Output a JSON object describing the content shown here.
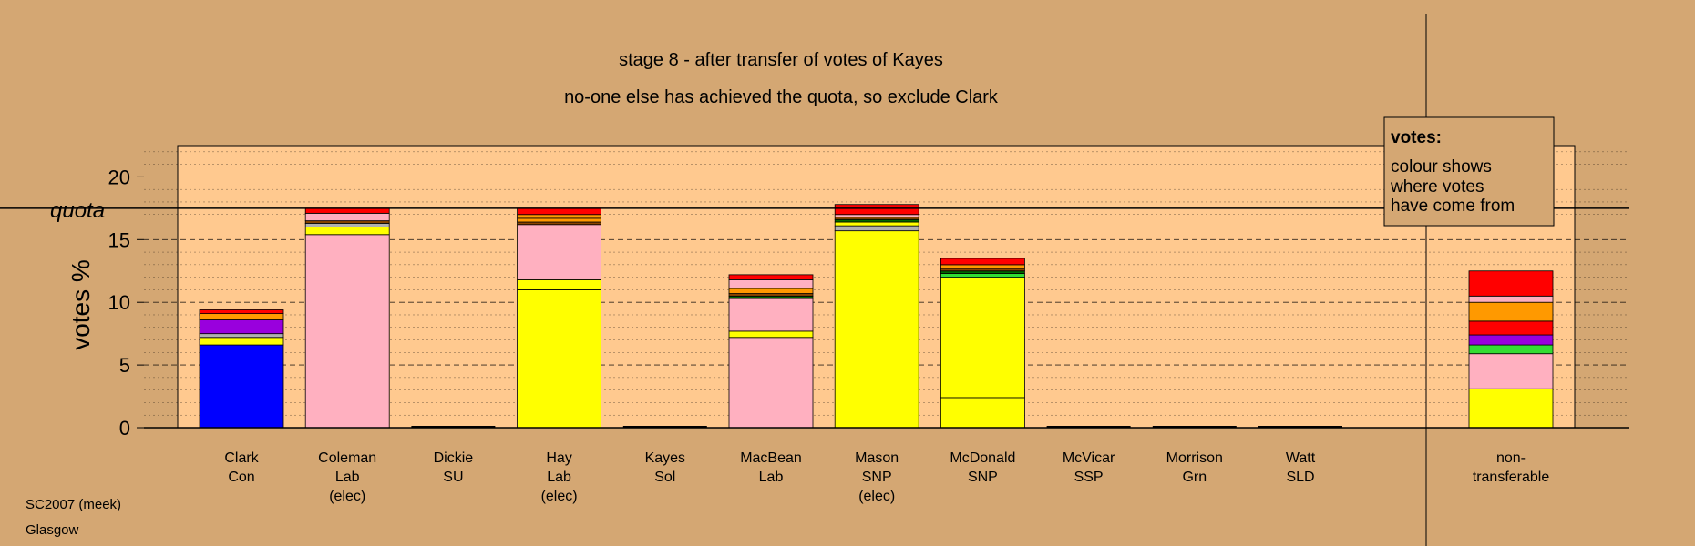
{
  "chart_data": {
    "type": "bar",
    "title": "stage 8 - after transfer of votes of Kayes",
    "subtitle": "no-one else has achieved the quota, so exclude Clark",
    "ylabel": "votes %",
    "ylim": [
      0,
      22.5
    ],
    "yticks": [
      0,
      5,
      10,
      15,
      20
    ],
    "quota": 17.5,
    "quota_label": "quota",
    "legend": {
      "title": "votes:",
      "lines": [
        "colour shows",
        "where votes",
        "have come from"
      ]
    },
    "footer": [
      "SC2007 (meek)",
      "Glasgow"
    ],
    "colors": {
      "background": "#d4a773",
      "plot_area": "#ffc98f",
      "blue": "#0000ff",
      "yellow": "#ffff00",
      "pink": "#ffb0c0",
      "purple": "#9900dd",
      "orange": "#ff9900",
      "red": "#ff0000",
      "green": "#33dd33",
      "darkgreen": "#006600",
      "brown": "#884400",
      "grey": "#b0b0b0"
    },
    "candidates": [
      {
        "name": "Clark",
        "party": "Con",
        "note": "",
        "segments": [
          {
            "value": 6.6,
            "color": "blue"
          },
          {
            "value": 0.6,
            "color": "yellow"
          },
          {
            "value": 0.3,
            "color": "grey"
          },
          {
            "value": 1.1,
            "color": "purple"
          },
          {
            "value": 0.5,
            "color": "orange"
          },
          {
            "value": 0.3,
            "color": "red"
          }
        ]
      },
      {
        "name": "Coleman",
        "party": "Lab",
        "note": "(elec)",
        "segments": [
          {
            "value": 15.4,
            "color": "pink"
          },
          {
            "value": 0.6,
            "color": "yellow"
          },
          {
            "value": 0.3,
            "color": "grey"
          },
          {
            "value": 0.2,
            "color": "brown"
          },
          {
            "value": 0.6,
            "color": "pink"
          },
          {
            "value": 0.4,
            "color": "red"
          }
        ]
      },
      {
        "name": "Dickie",
        "party": "SU",
        "note": "",
        "segments": []
      },
      {
        "name": "Hay",
        "party": "Lab",
        "note": "(elec)",
        "segments": [
          {
            "value": 11.0,
            "color": "yellow"
          },
          {
            "value": 0.8,
            "color": "yellow"
          },
          {
            "value": 4.4,
            "color": "pink"
          },
          {
            "value": 0.2,
            "color": "brown"
          },
          {
            "value": 0.3,
            "color": "orange"
          },
          {
            "value": 0.3,
            "color": "orange"
          },
          {
            "value": 0.5,
            "color": "red"
          }
        ]
      },
      {
        "name": "Kayes",
        "party": "Sol",
        "note": "",
        "segments": []
      },
      {
        "name": "MacBean",
        "party": "Lab",
        "note": "",
        "segments": [
          {
            "value": 7.2,
            "color": "pink"
          },
          {
            "value": 0.5,
            "color": "yellow"
          },
          {
            "value": 2.6,
            "color": "pink"
          },
          {
            "value": 0.2,
            "color": "darkgreen"
          },
          {
            "value": 0.2,
            "color": "brown"
          },
          {
            "value": 0.4,
            "color": "orange"
          },
          {
            "value": 0.7,
            "color": "pink"
          },
          {
            "value": 0.4,
            "color": "red"
          }
        ]
      },
      {
        "name": "Mason",
        "party": "SNP",
        "note": "(elec)",
        "segments": [
          {
            "value": 15.7,
            "color": "yellow"
          },
          {
            "value": 0.4,
            "color": "grey"
          },
          {
            "value": 0.3,
            "color": "yellow"
          },
          {
            "value": 0.2,
            "color": "darkgreen"
          },
          {
            "value": 0.2,
            "color": "brown"
          },
          {
            "value": 0.2,
            "color": "pink"
          },
          {
            "value": 0.8,
            "color": "red"
          }
        ]
      },
      {
        "name": "McDonald",
        "party": "SNP",
        "note": "",
        "segments": [
          {
            "value": 2.4,
            "color": "yellow"
          },
          {
            "value": 9.6,
            "color": "yellow"
          },
          {
            "value": 0.3,
            "color": "green"
          },
          {
            "value": 0.2,
            "color": "darkgreen"
          },
          {
            "value": 0.2,
            "color": "brown"
          },
          {
            "value": 0.3,
            "color": "orange"
          },
          {
            "value": 0.5,
            "color": "red"
          }
        ]
      },
      {
        "name": "McVicar",
        "party": "SSP",
        "note": "",
        "segments": []
      },
      {
        "name": "Morrison",
        "party": "Grn",
        "note": "",
        "segments": []
      },
      {
        "name": "Watt",
        "party": "SLD",
        "note": "",
        "segments": []
      }
    ],
    "nontransferable": {
      "label_lines": [
        "non-",
        "transferable"
      ],
      "segments": [
        {
          "value": 3.1,
          "color": "yellow"
        },
        {
          "value": 2.8,
          "color": "pink"
        },
        {
          "value": 0.7,
          "color": "green"
        },
        {
          "value": 0.8,
          "color": "purple"
        },
        {
          "value": 1.1,
          "color": "red"
        },
        {
          "value": 1.5,
          "color": "orange"
        },
        {
          "value": 0.5,
          "color": "pink"
        },
        {
          "value": 2.0,
          "color": "red"
        }
      ]
    }
  }
}
